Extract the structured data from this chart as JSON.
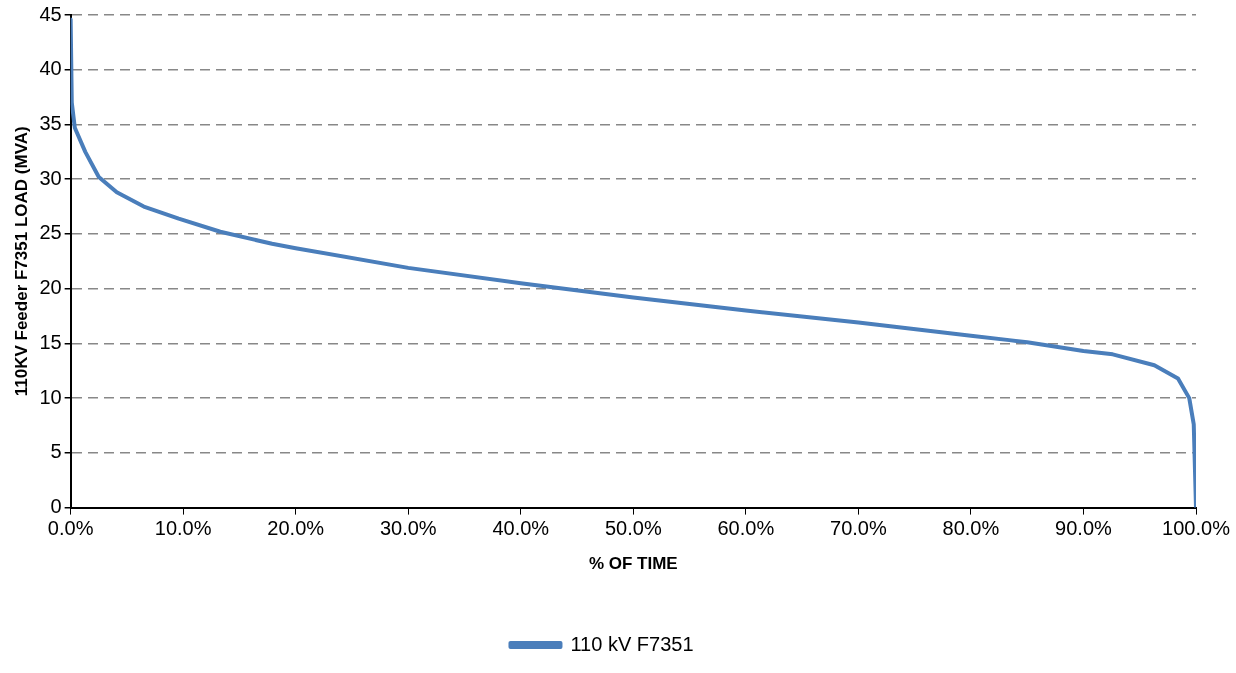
{
  "chart_data": {
    "type": "line",
    "xlabel": "% OF TIME",
    "ylabel": "110KV Feeder F7351 LOAD (MVA)",
    "xlim": [
      0,
      100
    ],
    "xticks": [
      {
        "value": 0,
        "label": "0.0%"
      },
      {
        "value": 10,
        "label": "10.0%"
      },
      {
        "value": 20,
        "label": "20.0%"
      },
      {
        "value": 30,
        "label": "30.0%"
      },
      {
        "value": 40,
        "label": "40.0%"
      },
      {
        "value": 50,
        "label": "50.0%"
      },
      {
        "value": 60,
        "label": "60.0%"
      },
      {
        "value": 70,
        "label": "70.0%"
      },
      {
        "value": 80,
        "label": "80.0%"
      },
      {
        "value": 90,
        "label": "90.0%"
      },
      {
        "value": 100,
        "label": "100.0%"
      }
    ],
    "ylim": [
      0,
      45
    ],
    "yticks": [
      0,
      5,
      10,
      15,
      20,
      25,
      30,
      35,
      40,
      45
    ],
    "grid": "y",
    "legend": "bottom",
    "marker": "none",
    "line_style": "solid",
    "series": [
      {
        "name": "110 kV F7351",
        "color": "#4a7ebb",
        "x": [
          0,
          0.1,
          0.37,
          1.3,
          2.5,
          4.1,
          6.5,
          9.6,
          13.3,
          17.9,
          20,
          30,
          40,
          50,
          60,
          70,
          80,
          83.4,
          85,
          90,
          92.6,
          96.3,
          98.4,
          99.4,
          99.8,
          100
        ],
        "values": [
          44.6,
          37,
          34.7,
          32.5,
          30.2,
          28.8,
          27.5,
          26.4,
          25.2,
          24.1,
          23.7,
          21.9,
          20.5,
          19.2,
          18,
          16.9,
          15.7,
          15.3,
          15.1,
          14.3,
          14,
          13,
          11.8,
          10,
          7.6,
          0
        ]
      }
    ]
  }
}
